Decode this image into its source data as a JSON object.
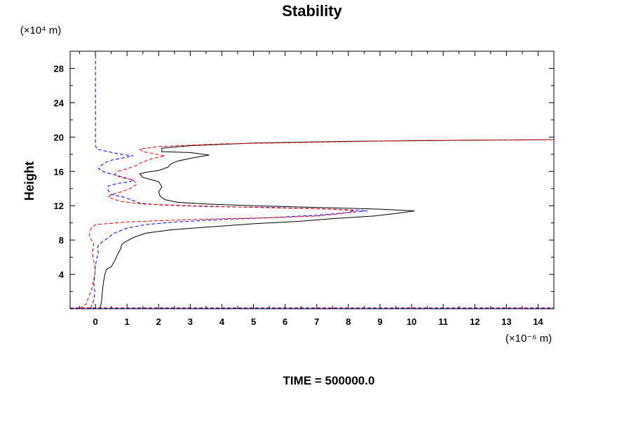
{
  "chart_data": {
    "type": "line",
    "title": "Stability",
    "ylabel": "Height",
    "yunit": "(×10⁴ m)",
    "xunit": "(×10⁻⁶ m)",
    "footer": "TIME = 500000.0",
    "xlim": [
      -0.8,
      14.5
    ],
    "ylim": [
      0,
      30
    ],
    "xticks": [
      0,
      1,
      2,
      3,
      4,
      5,
      6,
      7,
      8,
      9,
      10,
      11,
      12,
      13,
      14
    ],
    "yticks": [
      4,
      8,
      12,
      16,
      20,
      24,
      28
    ],
    "grid": false,
    "series": [
      {
        "color": "#000000",
        "dash": "solid",
        "points": [
          [
            0.15,
            0.05
          ],
          [
            0.2,
            1.0
          ],
          [
            0.22,
            2.0
          ],
          [
            0.25,
            3.0
          ],
          [
            0.3,
            4.0
          ],
          [
            0.35,
            4.6
          ],
          [
            0.5,
            4.9
          ],
          [
            0.6,
            5.5
          ],
          [
            0.7,
            6.3
          ],
          [
            0.8,
            7.0
          ],
          [
            0.82,
            7.4
          ],
          [
            0.9,
            7.7
          ],
          [
            1.0,
            7.9
          ],
          [
            1.2,
            8.3
          ],
          [
            1.6,
            8.8
          ],
          [
            2.4,
            9.2
          ],
          [
            3.5,
            9.5
          ],
          [
            5.0,
            9.9
          ],
          [
            6.5,
            10.2
          ],
          [
            7.5,
            10.5
          ],
          [
            8.8,
            10.8
          ],
          [
            9.5,
            11.1
          ],
          [
            10.1,
            11.4
          ],
          [
            9.0,
            11.6
          ],
          [
            7.0,
            11.8
          ],
          [
            5.0,
            12.0
          ],
          [
            3.5,
            12.2
          ],
          [
            2.6,
            12.4
          ],
          [
            2.2,
            12.7
          ],
          [
            2.05,
            13.1
          ],
          [
            2.0,
            13.6
          ],
          [
            2.1,
            14.2
          ],
          [
            2.0,
            14.8
          ],
          [
            1.8,
            15.0
          ],
          [
            1.5,
            15.3
          ],
          [
            1.4,
            15.7
          ],
          [
            1.6,
            15.9
          ],
          [
            2.0,
            16.1
          ],
          [
            2.3,
            16.5
          ],
          [
            2.4,
            16.9
          ],
          [
            2.6,
            17.2
          ],
          [
            3.1,
            17.6
          ],
          [
            3.6,
            17.9
          ],
          [
            3.0,
            18.2
          ],
          [
            2.1,
            18.3
          ],
          [
            2.1,
            18.7
          ],
          [
            3.0,
            19.0
          ],
          [
            5.0,
            19.3
          ],
          [
            8.0,
            19.5
          ],
          [
            11.0,
            19.6
          ],
          [
            14.5,
            19.7
          ]
        ]
      },
      {
        "color": "#0000ff",
        "dash": "dashed",
        "points": [
          [
            -0.15,
            0.05
          ],
          [
            -0.05,
            1.0
          ],
          [
            -0.02,
            2.0
          ],
          [
            -0.05,
            3.0
          ],
          [
            -0.02,
            4.0
          ],
          [
            0.0,
            5.0
          ],
          [
            0.05,
            6.0
          ],
          [
            0.1,
            6.5
          ],
          [
            0.05,
            7.0
          ],
          [
            0.1,
            7.4
          ],
          [
            0.3,
            8.0
          ],
          [
            0.6,
            8.8
          ],
          [
            1.0,
            9.4
          ],
          [
            1.6,
            9.8
          ],
          [
            2.5,
            10.1
          ],
          [
            4.0,
            10.4
          ],
          [
            5.5,
            10.6
          ],
          [
            7.0,
            10.9
          ],
          [
            8.0,
            11.2
          ],
          [
            8.6,
            11.4
          ],
          [
            7.5,
            11.6
          ],
          [
            5.5,
            11.8
          ],
          [
            3.5,
            11.9
          ],
          [
            2.0,
            12.1
          ],
          [
            1.4,
            12.3
          ],
          [
            1.2,
            12.6
          ],
          [
            0.9,
            13.0
          ],
          [
            0.5,
            13.3
          ],
          [
            0.4,
            13.8
          ],
          [
            0.4,
            14.3
          ],
          [
            0.7,
            14.6
          ],
          [
            1.1,
            14.8
          ],
          [
            1.2,
            15.0
          ],
          [
            0.9,
            15.3
          ],
          [
            0.6,
            15.6
          ],
          [
            0.3,
            15.9
          ],
          [
            0.1,
            16.3
          ],
          [
            0.15,
            16.6
          ],
          [
            0.3,
            17.0
          ],
          [
            0.5,
            17.3
          ],
          [
            0.9,
            17.6
          ],
          [
            1.2,
            17.8
          ],
          [
            0.8,
            18.0
          ],
          [
            0.4,
            18.3
          ],
          [
            0.05,
            18.6
          ],
          [
            0.0,
            19.0
          ],
          [
            0.0,
            30.0
          ]
        ]
      },
      {
        "color": "#ff0000",
        "dash": "dashed",
        "points": [
          [
            -0.5,
            0.05
          ],
          [
            -0.3,
            0.5
          ],
          [
            -0.2,
            1.5
          ],
          [
            -0.1,
            2.5
          ],
          [
            -0.05,
            3.5
          ],
          [
            0.0,
            4.5
          ],
          [
            -0.05,
            5.5
          ],
          [
            -0.1,
            6.5
          ],
          [
            -0.05,
            7.5
          ],
          [
            -0.2,
            8.5
          ],
          [
            -0.15,
            9.3
          ],
          [
            0.0,
            9.8
          ],
          [
            1.0,
            10.1
          ],
          [
            3.0,
            10.4
          ],
          [
            5.5,
            10.6
          ],
          [
            7.0,
            10.8
          ],
          [
            7.8,
            11.1
          ],
          [
            8.2,
            11.4
          ],
          [
            7.5,
            11.6
          ],
          [
            5.0,
            11.8
          ],
          [
            3.0,
            12.0
          ],
          [
            1.5,
            12.2
          ],
          [
            0.8,
            12.5
          ],
          [
            0.4,
            13.0
          ],
          [
            0.5,
            13.3
          ],
          [
            0.8,
            13.6
          ],
          [
            1.1,
            14.0
          ],
          [
            1.3,
            14.5
          ],
          [
            1.2,
            15.0
          ],
          [
            0.8,
            15.3
          ],
          [
            0.6,
            15.6
          ],
          [
            0.7,
            16.0
          ],
          [
            1.0,
            16.3
          ],
          [
            1.3,
            16.7
          ],
          [
            1.5,
            17.1
          ],
          [
            1.8,
            17.5
          ],
          [
            2.2,
            17.8
          ],
          [
            1.8,
            18.1
          ],
          [
            1.5,
            18.3
          ],
          [
            1.4,
            18.6
          ],
          [
            2.0,
            18.9
          ],
          [
            4.0,
            19.2
          ],
          [
            7.0,
            19.4
          ],
          [
            10.0,
            19.6
          ],
          [
            14.5,
            19.7
          ]
        ]
      }
    ],
    "baseline_series": [
      {
        "color": "#ff0000",
        "dash": "dashed",
        "x": [
          -0.8,
          14.5
        ],
        "y": 0.1
      },
      {
        "color": "#0000ff",
        "dash": "dashed",
        "x": [
          -0.8,
          14.5
        ],
        "y": 0.05
      },
      {
        "color": "#000000",
        "dash": "solid",
        "x": [
          -0.8,
          14.5
        ],
        "y": 0.0
      }
    ]
  }
}
